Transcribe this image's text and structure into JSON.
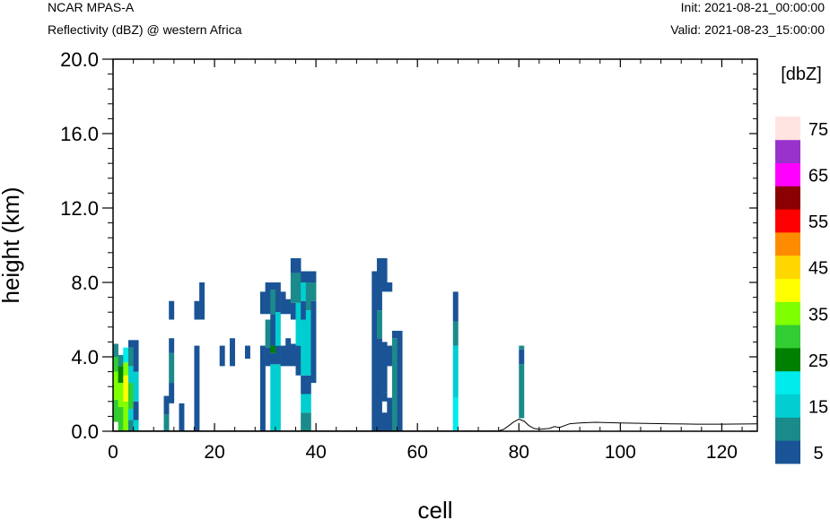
{
  "header": {
    "model": "NCAR MPAS-A",
    "field": "Reflectivity (dBZ) @ western Africa",
    "init": "Init: 2021-08-21_00:00:00",
    "valid": "Valid: 2021-08-23_15:00:00"
  },
  "chart_data": {
    "type": "heatmap",
    "xlabel": "cell",
    "ylabel": "height (km)",
    "xlim": [
      0,
      127
    ],
    "ylim": [
      0,
      20
    ],
    "x_ticks": [
      "0",
      "20",
      "40",
      "60",
      "80",
      "100",
      "120"
    ],
    "y_ticks": [
      "0.0",
      "4.0",
      "8.0",
      "12.0",
      "16.0",
      "20.0"
    ],
    "colorbar": {
      "title": "[dbZ]",
      "labels": [
        "5",
        "15",
        "25",
        "35",
        "45",
        "55",
        "65",
        "75"
      ],
      "levels": [
        5,
        10,
        15,
        20,
        25,
        30,
        35,
        40,
        45,
        50,
        55,
        60,
        65,
        70,
        75
      ],
      "colors": [
        "#1a5496",
        "#1b8a8a",
        "#00ced1",
        "#00ebeb",
        "#008000",
        "#32cd32",
        "#7fff00",
        "#ffff00",
        "#ffd700",
        "#ff8c00",
        "#ff0000",
        "#8b0000",
        "#ff00ff",
        "#9932cc",
        "#ffe4e1"
      ]
    },
    "cell_height_km": 0.3,
    "columns": [
      {
        "x": 0.5,
        "segs": [
          [
            0.5,
            1.7,
            "#32cd32"
          ],
          [
            1.7,
            3.2,
            "#7fff00"
          ],
          [
            3.2,
            4.0,
            "#32cd32"
          ],
          [
            4.0,
            4.7,
            "#1b8a8a"
          ]
        ]
      },
      {
        "x": 1.5,
        "segs": [
          [
            0.0,
            1.3,
            "#32cd32"
          ],
          [
            1.3,
            2.6,
            "#7fff00"
          ],
          [
            2.6,
            3.5,
            "#008000"
          ],
          [
            3.5,
            4.1,
            "#1b8a8a"
          ]
        ]
      },
      {
        "x": 2.5,
        "segs": [
          [
            0.0,
            1.6,
            "#7fff00"
          ],
          [
            1.6,
            3.0,
            "#ffff00"
          ],
          [
            3.0,
            3.7,
            "#7fff00"
          ],
          [
            3.7,
            4.5,
            "#00ebeb"
          ]
        ]
      },
      {
        "x": 3.5,
        "segs": [
          [
            0.0,
            0.6,
            "#1b8a8a"
          ],
          [
            0.6,
            1.2,
            "#00ced1"
          ],
          [
            1.2,
            2.6,
            "#32cd32"
          ],
          [
            2.6,
            3.5,
            "#00ced1"
          ],
          [
            3.5,
            4.5,
            "#1b8a8a"
          ],
          [
            4.5,
            4.9,
            "#1a5496"
          ]
        ]
      },
      {
        "x": 4.5,
        "segs": [
          [
            0.0,
            0.6,
            "#00ced1"
          ],
          [
            0.6,
            1.6,
            "#1a5496"
          ],
          [
            1.6,
            3.2,
            "#00ced1"
          ],
          [
            3.2,
            4.9,
            "#1a5496"
          ]
        ]
      },
      {
        "x": 10.5,
        "segs": [
          [
            0.0,
            0.9,
            "#1b8a8a"
          ],
          [
            0.9,
            1.9,
            "#1a5496"
          ]
        ]
      },
      {
        "x": 11.5,
        "segs": [
          [
            1.5,
            2.6,
            "#1a5496"
          ],
          [
            2.6,
            4.2,
            "#1b8a8a"
          ],
          [
            4.2,
            5.0,
            "#1a5496"
          ],
          [
            6.0,
            7.0,
            "#1a5496"
          ]
        ]
      },
      {
        "x": 13.5,
        "segs": [
          [
            0.0,
            1.5,
            "#1a5496"
          ]
        ]
      },
      {
        "x": 16.5,
        "segs": [
          [
            0.0,
            4.6,
            "#1a5496"
          ],
          [
            6.0,
            7.0,
            "#1a5496"
          ]
        ]
      },
      {
        "x": 17.5,
        "segs": [
          [
            6.0,
            8.0,
            "#1a5496"
          ]
        ]
      },
      {
        "x": 21.5,
        "segs": [
          [
            3.5,
            4.6,
            "#1a5496"
          ]
        ]
      },
      {
        "x": 23.5,
        "segs": [
          [
            3.5,
            5.0,
            "#1a5496"
          ]
        ]
      },
      {
        "x": 26.5,
        "segs": [
          [
            3.9,
            4.6,
            "#1a5496"
          ]
        ]
      },
      {
        "x": 29.5,
        "segs": [
          [
            0.0,
            4.6,
            "#1a5496"
          ],
          [
            6.3,
            7.5,
            "#1a5496"
          ]
        ]
      },
      {
        "x": 30.5,
        "segs": [
          [
            3.5,
            4.5,
            "#1a5496"
          ],
          [
            4.5,
            6.0,
            "#1b8a8a"
          ],
          [
            6.3,
            8.0,
            "#1a5496"
          ]
        ]
      },
      {
        "x": 31.5,
        "segs": [
          [
            0.0,
            3.6,
            "#00ced1"
          ],
          [
            3.6,
            4.2,
            "#1a5496"
          ],
          [
            4.2,
            4.6,
            "#008000"
          ],
          [
            4.6,
            6.3,
            "#1a5496"
          ],
          [
            6.3,
            7.6,
            "#1b8a8a"
          ],
          [
            7.6,
            8.0,
            "#1a5496"
          ]
        ]
      },
      {
        "x": 32.5,
        "segs": [
          [
            0.0,
            3.6,
            "#00ced1"
          ],
          [
            3.6,
            4.6,
            "#1a5496"
          ],
          [
            4.6,
            6.4,
            "#00ced1"
          ],
          [
            6.4,
            8.0,
            "#1a5496"
          ]
        ]
      },
      {
        "x": 33.5,
        "segs": [
          [
            3.5,
            4.6,
            "#1a5496"
          ],
          [
            6.3,
            7.5,
            "#1a5496"
          ]
        ]
      },
      {
        "x": 34.5,
        "segs": [
          [
            3.5,
            5.0,
            "#1a5496"
          ],
          [
            6.3,
            7.1,
            "#1a5496"
          ]
        ]
      },
      {
        "x": 35.5,
        "segs": [
          [
            3.5,
            4.7,
            "#1a5496"
          ],
          [
            6.0,
            6.9,
            "#1a5496"
          ],
          [
            6.9,
            8.5,
            "#1b8a8a"
          ],
          [
            8.5,
            9.3,
            "#1a5496"
          ]
        ]
      },
      {
        "x": 36.5,
        "segs": [
          [
            3.0,
            4.6,
            "#1a5496"
          ],
          [
            4.6,
            6.9,
            "#00ced1"
          ],
          [
            6.9,
            8.5,
            "#1b8a8a"
          ],
          [
            8.5,
            9.3,
            "#1a5496"
          ]
        ]
      },
      {
        "x": 37.5,
        "segs": [
          [
            0.0,
            1.0,
            "#1b8a8a"
          ],
          [
            1.0,
            2.0,
            "#00ced1"
          ],
          [
            2.0,
            3.0,
            "#1a5496"
          ],
          [
            3.0,
            6.0,
            "#00ced1"
          ],
          [
            6.0,
            7.0,
            "#1a5496"
          ],
          [
            7.0,
            8.0,
            "#00ced1"
          ],
          [
            8.0,
            8.6,
            "#1a5496"
          ]
        ]
      },
      {
        "x": 38.5,
        "segs": [
          [
            0.0,
            1.0,
            "#1b8a8a"
          ],
          [
            1.0,
            2.0,
            "#00ced1"
          ],
          [
            2.0,
            3.0,
            "#1a5496"
          ],
          [
            3.0,
            6.5,
            "#00ced1"
          ],
          [
            6.5,
            8.0,
            "#1b8a8a"
          ],
          [
            8.0,
            8.6,
            "#1a5496"
          ]
        ]
      },
      {
        "x": 39.5,
        "segs": [
          [
            2.6,
            7.0,
            "#1a5496"
          ],
          [
            7.0,
            8.0,
            "#1b8a8a"
          ],
          [
            8.0,
            8.6,
            "#1a5496"
          ]
        ]
      },
      {
        "x": 51.5,
        "segs": [
          [
            0.0,
            8.6,
            "#1a5496"
          ]
        ]
      },
      {
        "x": 52.5,
        "segs": [
          [
            0.0,
            5.0,
            "#1a5496"
          ],
          [
            5.0,
            6.5,
            "#1b8a8a"
          ],
          [
            6.5,
            9.3,
            "#1a5496"
          ]
        ]
      },
      {
        "x": 53.5,
        "segs": [
          [
            0.0,
            1.0,
            "#1a5496"
          ],
          [
            1.6,
            2.1,
            "#1a5496"
          ],
          [
            2.1,
            4.8,
            "#1a5496"
          ],
          [
            7.5,
            9.3,
            "#1a5496"
          ]
        ]
      },
      {
        "x": 54.5,
        "segs": [
          [
            0.0,
            1.8,
            "#1a5496"
          ],
          [
            3.5,
            4.6,
            "#1a5496"
          ],
          [
            7.5,
            8.0,
            "#1a5496"
          ]
        ]
      },
      {
        "x": 55.5,
        "segs": [
          [
            0.0,
            4.0,
            "#1b8a8a"
          ],
          [
            4.0,
            5.0,
            "#1b8a8a"
          ],
          [
            5.0,
            5.4,
            "#1a5496"
          ]
        ]
      },
      {
        "x": 56.5,
        "segs": [
          [
            0.0,
            5.4,
            "#1a5496"
          ]
        ]
      },
      {
        "x": 67.5,
        "segs": [
          [
            0.0,
            1.8,
            "#00ebeb"
          ],
          [
            1.8,
            4.6,
            "#00ced1"
          ],
          [
            4.6,
            5.9,
            "#1b8a8a"
          ],
          [
            5.9,
            7.5,
            "#1a5496"
          ]
        ]
      },
      {
        "x": 80.5,
        "segs": [
          [
            0.7,
            3.6,
            "#1b8a8a"
          ],
          [
            3.6,
            4.4,
            "#1a5496"
          ],
          [
            4.4,
            4.6,
            "#1b8a8a"
          ]
        ]
      }
    ],
    "terrain_km": [
      [
        0,
        0.02
      ],
      [
        76,
        0.02
      ],
      [
        77,
        0.1
      ],
      [
        78,
        0.3
      ],
      [
        79,
        0.5
      ],
      [
        80,
        0.65
      ],
      [
        81,
        0.55
      ],
      [
        82,
        0.3
      ],
      [
        83,
        0.15
      ],
      [
        84,
        0.1
      ],
      [
        86,
        0.15
      ],
      [
        87,
        0.25
      ],
      [
        88,
        0.2
      ],
      [
        90,
        0.4
      ],
      [
        92,
        0.45
      ],
      [
        95,
        0.48
      ],
      [
        100,
        0.45
      ],
      [
        105,
        0.42
      ],
      [
        110,
        0.4
      ],
      [
        115,
        0.38
      ],
      [
        120,
        0.38
      ],
      [
        127,
        0.4
      ]
    ]
  }
}
